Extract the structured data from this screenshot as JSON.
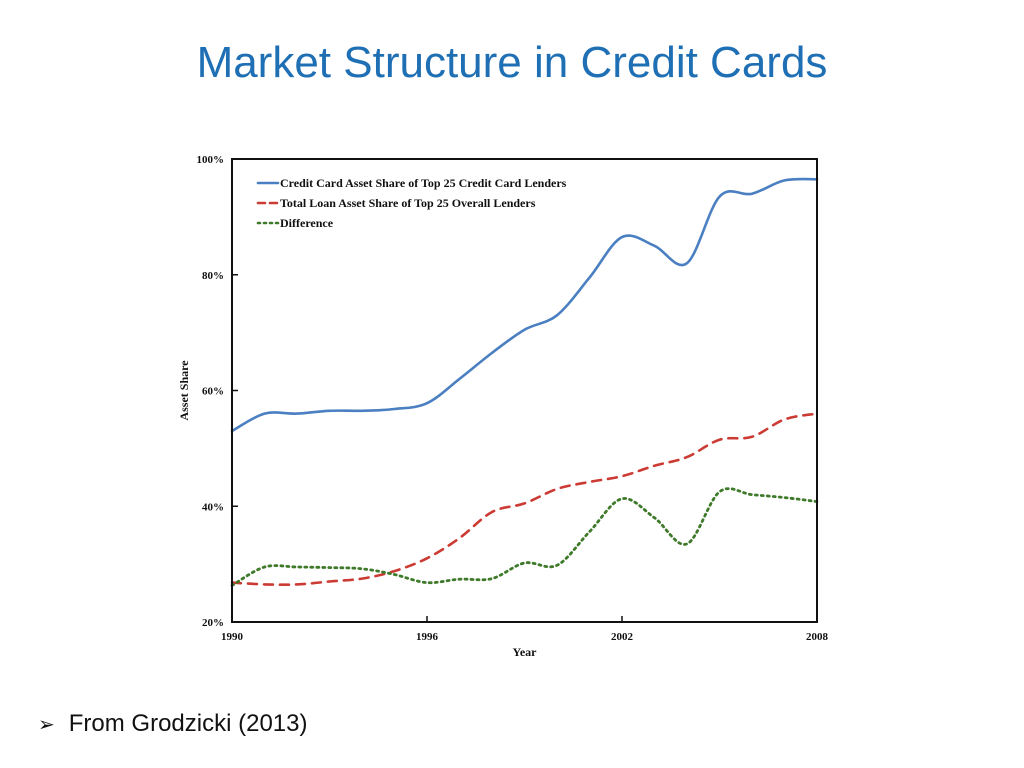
{
  "slide": {
    "title": "Market Structure in Credit Cards",
    "bullet_icon": "arrowhead-bullet-icon",
    "bullet_glyph": "➢",
    "bullet_text": "From Grodzicki (2013)"
  },
  "chart_data": {
    "type": "line",
    "title": "",
    "xlabel": "Year",
    "ylabel": "Asset Share",
    "xlim": [
      1990,
      2008
    ],
    "ylim": [
      20,
      100
    ],
    "x_ticks": [
      1990,
      1996,
      2002,
      2008
    ],
    "x_tick_labels": [
      "1990",
      "1996",
      "2002",
      "2008"
    ],
    "y_ticks": [
      20,
      40,
      60,
      80,
      100
    ],
    "y_tick_labels": [
      "20%",
      "40%",
      "60%",
      "80%",
      "100%"
    ],
    "grid": false,
    "legend_position": "top-left",
    "x": [
      1990,
      1991,
      1992,
      1993,
      1994,
      1995,
      1996,
      1997,
      1998,
      1999,
      2000,
      2001,
      2002,
      2003,
      2004,
      2005,
      2006,
      2007,
      2008
    ],
    "series": [
      {
        "name": "Credit Card Asset Share of Top 25 Credit Card Lenders",
        "color": "#4a7fc1",
        "style": "solid",
        "values": [
          53,
          56,
          56,
          56.5,
          56.5,
          56.8,
          57.8,
          62,
          66.5,
          70.5,
          73,
          79.5,
          86.5,
          85,
          82,
          93.5,
          94,
          96.3,
          96.5
        ]
      },
      {
        "name": "Total Loan Asset Share of Top 25 Overall Lenders",
        "color": "#cc3b33",
        "style": "dashed",
        "values": [
          26.8,
          26.5,
          26.5,
          27,
          27.5,
          28.8,
          31,
          34.5,
          39,
          40.5,
          43,
          44.2,
          45.2,
          47,
          48.5,
          51.5,
          52,
          55,
          56
        ]
      },
      {
        "name": "Difference",
        "color": "#3f7a2a",
        "style": "dotted",
        "values": [
          26.3,
          29.5,
          29.5,
          29.4,
          29.2,
          28.2,
          26.8,
          27.4,
          27.5,
          30.2,
          29.8,
          35.6,
          41.3,
          38,
          33.5,
          42.5,
          42,
          41.5,
          40.8
        ]
      }
    ]
  }
}
